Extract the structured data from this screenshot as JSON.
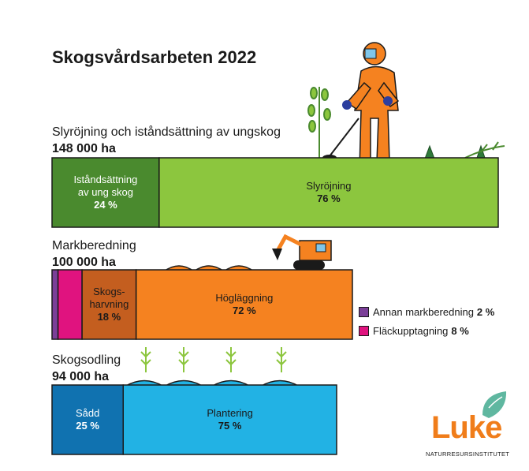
{
  "title": "Skogsvårdsarbeten 2022",
  "colors": {
    "ungskog_istand": "#4a8a2e",
    "ungskog_slyrojning": "#8cc63e",
    "markberedning_annan": "#7b3f98",
    "markberedning_flack": "#e0137f",
    "markberedning_harvning": "#c45e1f",
    "markberedning_hog": "#f58220",
    "skogsodling_sadd": "#1072b0",
    "skogsodling_plantering": "#22b2e4",
    "luke_orange": "#f07d1a",
    "luke_teal": "#5fb7a0"
  },
  "chart_data": [
    {
      "type": "bar",
      "orientation": "stacked-horizontal",
      "label": "Slyröjning och iståndsättning av ungskog",
      "total": "148 000 ha",
      "segments": [
        {
          "name": "Iståndsättning av ung skog",
          "lines": [
            "Iståndsättning",
            "av ung skog"
          ],
          "value": 24,
          "pct_label": "24 %"
        },
        {
          "name": "Slyröjning",
          "lines": [
            "Slyröjning"
          ],
          "value": 76,
          "pct_label": "76 %"
        }
      ]
    },
    {
      "type": "bar",
      "orientation": "stacked-horizontal",
      "label": "Markberedning",
      "total": "100 000 ha",
      "segments": [
        {
          "name": "Annan markberedning",
          "lines": [],
          "value": 2,
          "pct_label": "2 %"
        },
        {
          "name": "Fläckupptagning",
          "lines": [],
          "value": 8,
          "pct_label": "8 %"
        },
        {
          "name": "Skogsharvning",
          "lines": [
            "Skogs-",
            "harvning"
          ],
          "value": 18,
          "pct_label": "18 %"
        },
        {
          "name": "Högläggning",
          "lines": [
            "Högläggning"
          ],
          "value": 72,
          "pct_label": "72 %"
        }
      ],
      "legend": [
        {
          "name": "Annan markberedning",
          "pct_label": "2 %"
        },
        {
          "name": "Fläckupptagning",
          "pct_label": "8 %"
        }
      ]
    },
    {
      "type": "bar",
      "orientation": "stacked-horizontal",
      "label": "Skogsodling",
      "total": "94 000 ha",
      "segments": [
        {
          "name": "Sådd",
          "lines": [
            "Sådd"
          ],
          "value": 25,
          "pct_label": "25 %"
        },
        {
          "name": "Plantering",
          "lines": [
            "Plantering"
          ],
          "value": 75,
          "pct_label": "75 %"
        }
      ]
    }
  ],
  "logo": {
    "word": "Luke",
    "subtitle": "NATURRESURSINSTITUTET"
  }
}
